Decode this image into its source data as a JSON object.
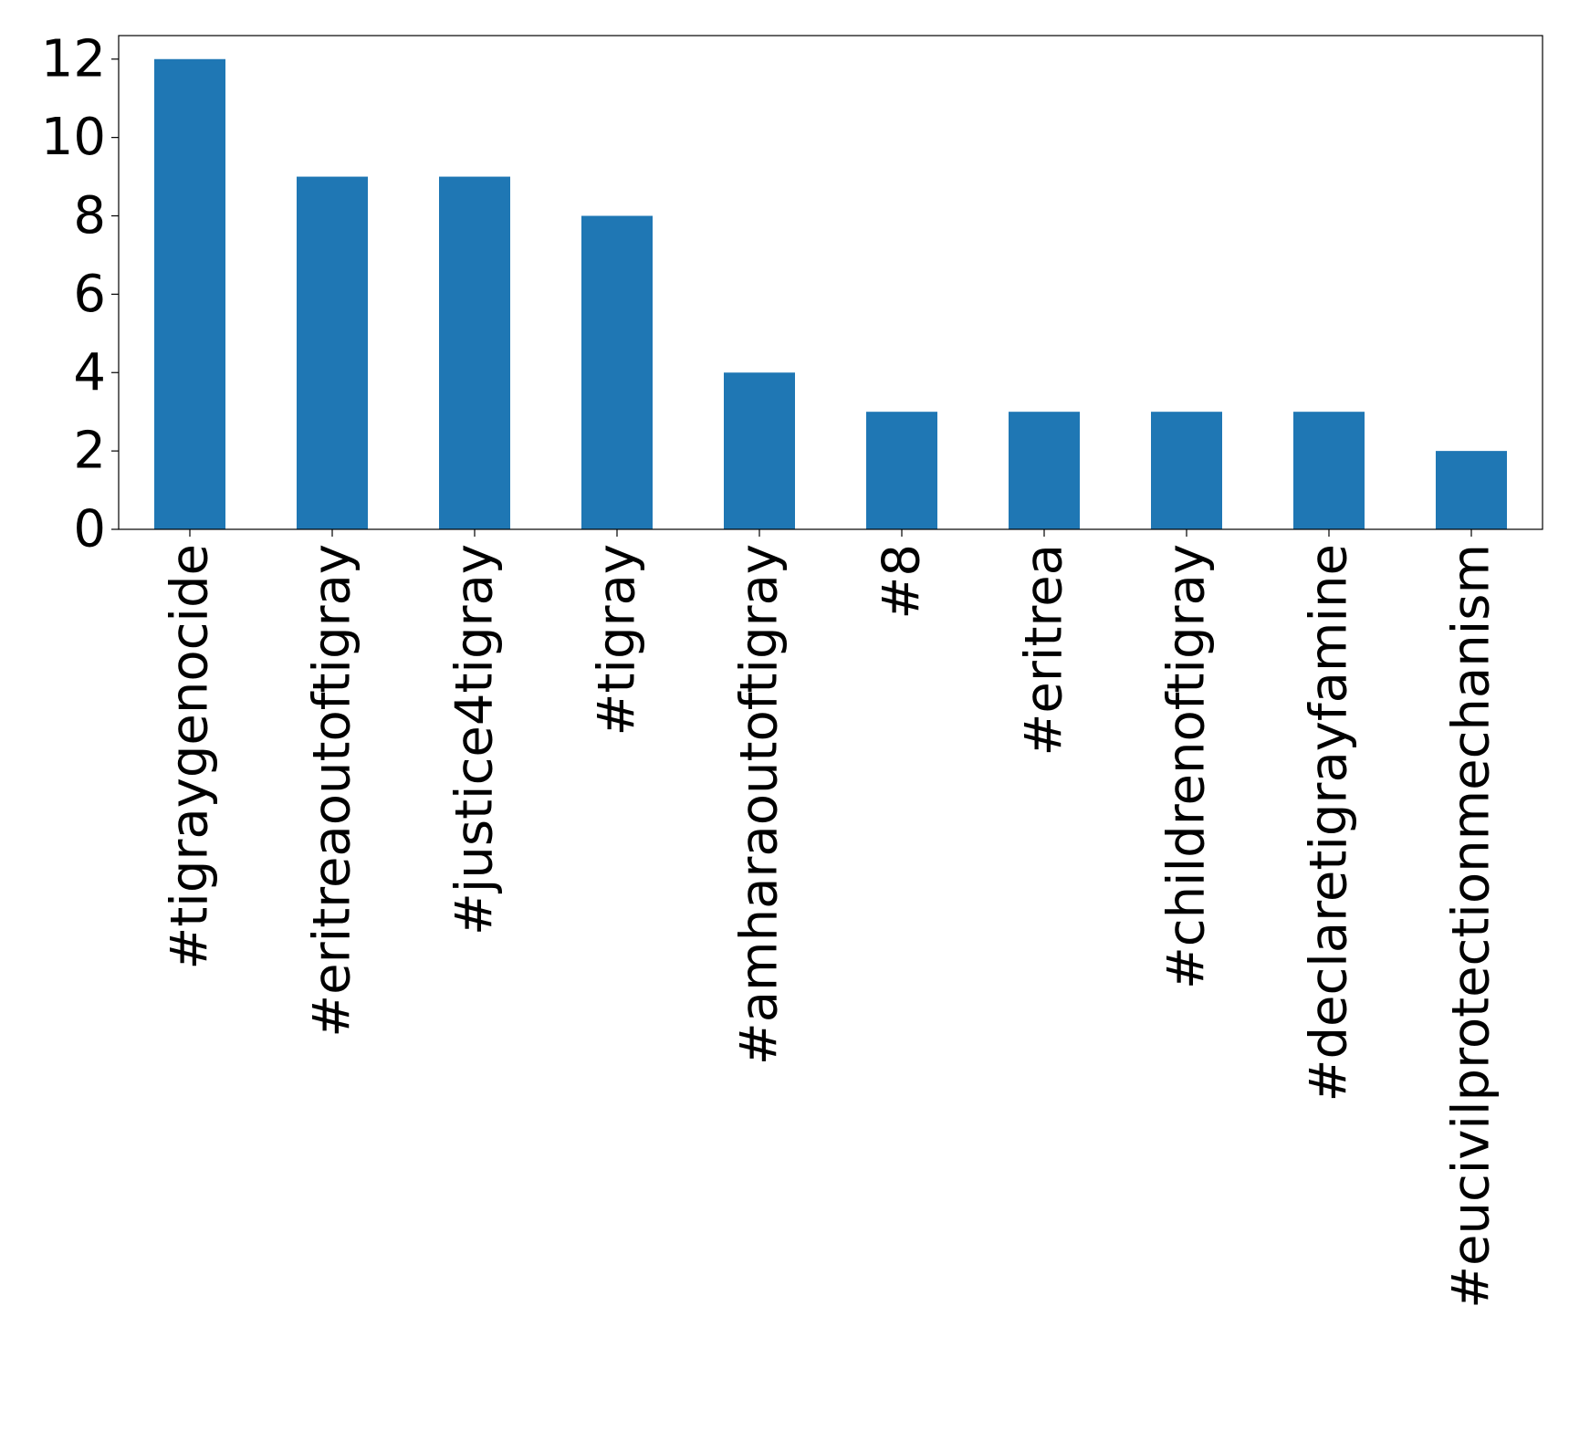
{
  "chart_data": {
    "type": "bar",
    "title": "",
    "xlabel": "",
    "ylabel": "",
    "categories": [
      "#tigraygenocide",
      "#eritreaoutoftigray",
      "#justice4tigray",
      "#tigray",
      "#amharaoutoftigray",
      "#8",
      "#eritrea",
      "#childrenoftigray",
      "#declaretigrayfamine",
      "#eucivilprotectionmechanism"
    ],
    "values": [
      12,
      9,
      9,
      8,
      4,
      3,
      3,
      3,
      3,
      2
    ],
    "ylim": [
      0,
      12.6
    ],
    "yticks": [
      0,
      2,
      4,
      6,
      8,
      10,
      12
    ],
    "grid": false,
    "legend": "none",
    "bar_color": "#1f77b4"
  }
}
